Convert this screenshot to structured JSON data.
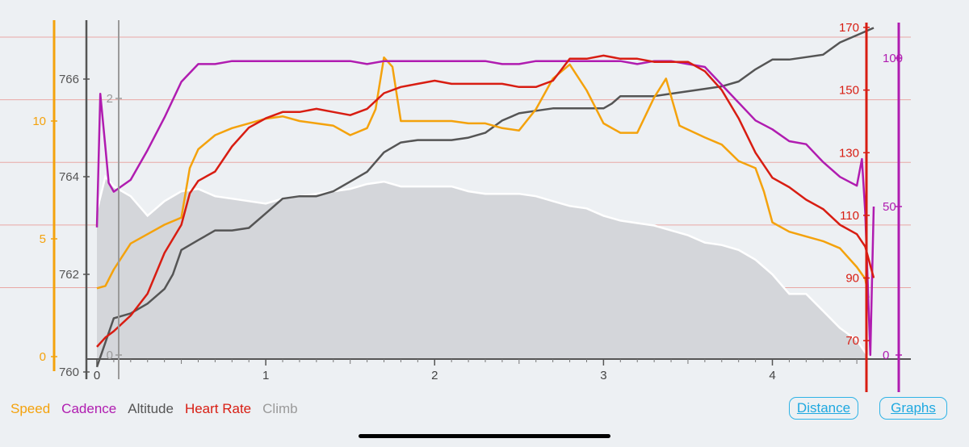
{
  "legend": [
    {
      "label": "Speed",
      "color": "#f4a20c"
    },
    {
      "label": "Cadence",
      "color": "#b01cb0"
    },
    {
      "label": "Altitude",
      "color": "#555555"
    },
    {
      "label": "Heart Rate",
      "color": "#d81d12"
    },
    {
      "label": "Climb",
      "color": "#9a9a9a"
    }
  ],
  "buttons": {
    "distance": "Distance",
    "graphs": "Graphs"
  },
  "chart_data": {
    "type": "line",
    "xlabel": "",
    "x_ticks": [
      "0",
      "1",
      "2",
      "3",
      "4"
    ],
    "xlim": [
      0,
      4.6
    ],
    "grid": "horizontal (heart rate axis)",
    "axes": {
      "speed": {
        "ticks": [
          "0",
          "5",
          "10"
        ],
        "ylim": [
          0,
          10.3
        ],
        "color": "#f4a20c"
      },
      "altitude": {
        "ticks": [
          "760",
          "762",
          "764",
          "766"
        ],
        "ylim": [
          760,
          766.95
        ],
        "color": "#555555"
      },
      "climb": {
        "ticks": [
          "0",
          "2"
        ],
        "ylim": [
          0,
          2.6
        ],
        "color": "#9a9a9a"
      },
      "heart_rate": {
        "ticks": [
          "70",
          "90",
          "110",
          "130",
          "150",
          "170"
        ],
        "ylim": [
          60,
          170
        ],
        "color": "#d81d12"
      },
      "cadence": {
        "ticks": [
          "0",
          "50",
          "100"
        ],
        "ylim": [
          0,
          110
        ],
        "color": "#b01cb0"
      }
    },
    "series": [
      {
        "name": "Speed",
        "axis": "speed",
        "color": "#f4a20c",
        "points": [
          [
            0.0,
            2.9
          ],
          [
            0.05,
            3.0
          ],
          [
            0.1,
            3.7
          ],
          [
            0.2,
            4.8
          ],
          [
            0.3,
            5.2
          ],
          [
            0.4,
            5.6
          ],
          [
            0.5,
            5.9
          ],
          [
            0.55,
            8.0
          ],
          [
            0.6,
            8.8
          ],
          [
            0.7,
            9.4
          ],
          [
            0.8,
            9.7
          ],
          [
            0.9,
            9.9
          ],
          [
            1.0,
            10.1
          ],
          [
            1.1,
            10.2
          ],
          [
            1.2,
            10.0
          ],
          [
            1.3,
            9.9
          ],
          [
            1.4,
            9.8
          ],
          [
            1.5,
            9.4
          ],
          [
            1.6,
            9.7
          ],
          [
            1.65,
            10.5
          ],
          [
            1.7,
            12.7
          ],
          [
            1.75,
            12.3
          ],
          [
            1.8,
            10.0
          ],
          [
            1.9,
            10.0
          ],
          [
            2.0,
            10.0
          ],
          [
            2.1,
            10.0
          ],
          [
            2.2,
            9.9
          ],
          [
            2.3,
            9.9
          ],
          [
            2.4,
            9.7
          ],
          [
            2.5,
            9.6
          ],
          [
            2.6,
            10.5
          ],
          [
            2.7,
            11.8
          ],
          [
            2.8,
            12.4
          ],
          [
            2.9,
            11.3
          ],
          [
            3.0,
            9.9
          ],
          [
            3.1,
            9.5
          ],
          [
            3.2,
            9.5
          ],
          [
            3.3,
            11.0
          ],
          [
            3.37,
            11.8
          ],
          [
            3.45,
            9.8
          ],
          [
            3.6,
            9.3
          ],
          [
            3.7,
            9.0
          ],
          [
            3.8,
            8.3
          ],
          [
            3.9,
            8.0
          ],
          [
            3.95,
            7.0
          ],
          [
            4.0,
            5.7
          ],
          [
            4.1,
            5.3
          ],
          [
            4.2,
            5.1
          ],
          [
            4.3,
            4.9
          ],
          [
            4.4,
            4.6
          ],
          [
            4.5,
            3.8
          ],
          [
            4.55,
            3.3
          ],
          [
            4.57,
            2.5
          ]
        ]
      },
      {
        "name": "Cadence",
        "axis": "cadence",
        "color": "#b01cb0",
        "points": [
          [
            0.0,
            43
          ],
          [
            0.02,
            88
          ],
          [
            0.05,
            70
          ],
          [
            0.07,
            58
          ],
          [
            0.1,
            55
          ],
          [
            0.2,
            59
          ],
          [
            0.3,
            69
          ],
          [
            0.4,
            80
          ],
          [
            0.5,
            92
          ],
          [
            0.6,
            98
          ],
          [
            0.7,
            98
          ],
          [
            0.8,
            99
          ],
          [
            0.9,
            99
          ],
          [
            1.0,
            99
          ],
          [
            1.1,
            99
          ],
          [
            1.2,
            99
          ],
          [
            1.3,
            99
          ],
          [
            1.4,
            99
          ],
          [
            1.5,
            99
          ],
          [
            1.6,
            98
          ],
          [
            1.7,
            99
          ],
          [
            1.8,
            99
          ],
          [
            1.9,
            99
          ],
          [
            2.0,
            99
          ],
          [
            2.1,
            99
          ],
          [
            2.2,
            99
          ],
          [
            2.3,
            99
          ],
          [
            2.4,
            98
          ],
          [
            2.5,
            98
          ],
          [
            2.6,
            99
          ],
          [
            2.7,
            99
          ],
          [
            2.8,
            99
          ],
          [
            2.9,
            99
          ],
          [
            3.0,
            99
          ],
          [
            3.1,
            99
          ],
          [
            3.2,
            98
          ],
          [
            3.3,
            99
          ],
          [
            3.4,
            99
          ],
          [
            3.5,
            98
          ],
          [
            3.6,
            97
          ],
          [
            3.7,
            91
          ],
          [
            3.8,
            85
          ],
          [
            3.9,
            79
          ],
          [
            4.0,
            76
          ],
          [
            4.1,
            72
          ],
          [
            4.2,
            71
          ],
          [
            4.3,
            65
          ],
          [
            4.4,
            60
          ],
          [
            4.5,
            57
          ],
          [
            4.53,
            66
          ],
          [
            4.55,
            48
          ],
          [
            4.58,
            0
          ],
          [
            4.6,
            50
          ]
        ]
      },
      {
        "name": "Altitude",
        "axis": "altitude",
        "color": "#555555",
        "points": [
          [
            0.0,
            760.1
          ],
          [
            0.1,
            761.1
          ],
          [
            0.2,
            761.2
          ],
          [
            0.3,
            761.4
          ],
          [
            0.4,
            761.7
          ],
          [
            0.45,
            762.0
          ],
          [
            0.5,
            762.5
          ],
          [
            0.6,
            762.7
          ],
          [
            0.7,
            762.9
          ],
          [
            0.8,
            762.9
          ],
          [
            0.9,
            762.95
          ],
          [
            1.0,
            763.25
          ],
          [
            1.1,
            763.55
          ],
          [
            1.2,
            763.6
          ],
          [
            1.3,
            763.6
          ],
          [
            1.4,
            763.7
          ],
          [
            1.5,
            763.9
          ],
          [
            1.6,
            764.1
          ],
          [
            1.7,
            764.5
          ],
          [
            1.8,
            764.7
          ],
          [
            1.9,
            764.75
          ],
          [
            2.0,
            764.75
          ],
          [
            2.1,
            764.75
          ],
          [
            2.2,
            764.8
          ],
          [
            2.3,
            764.9
          ],
          [
            2.4,
            765.15
          ],
          [
            2.5,
            765.3
          ],
          [
            2.6,
            765.35
          ],
          [
            2.7,
            765.4
          ],
          [
            2.8,
            765.4
          ],
          [
            2.9,
            765.4
          ],
          [
            3.0,
            765.4
          ],
          [
            3.05,
            765.5
          ],
          [
            3.1,
            765.65
          ],
          [
            3.2,
            765.65
          ],
          [
            3.3,
            765.65
          ],
          [
            3.4,
            765.7
          ],
          [
            3.5,
            765.75
          ],
          [
            3.6,
            765.8
          ],
          [
            3.7,
            765.85
          ],
          [
            3.8,
            765.95
          ],
          [
            3.9,
            766.2
          ],
          [
            4.0,
            766.4
          ],
          [
            4.1,
            766.4
          ],
          [
            4.2,
            766.45
          ],
          [
            4.3,
            766.5
          ],
          [
            4.4,
            766.75
          ],
          [
            4.5,
            766.9
          ],
          [
            4.6,
            767.05
          ]
        ]
      },
      {
        "name": "Heart Rate",
        "axis": "heart_rate",
        "color": "#d81d12",
        "points": [
          [
            0.0,
            68
          ],
          [
            0.05,
            71
          ],
          [
            0.1,
            73
          ],
          [
            0.2,
            78
          ],
          [
            0.3,
            85
          ],
          [
            0.4,
            98
          ],
          [
            0.5,
            107
          ],
          [
            0.55,
            117
          ],
          [
            0.6,
            121
          ],
          [
            0.7,
            124
          ],
          [
            0.8,
            132
          ],
          [
            0.9,
            138
          ],
          [
            1.0,
            141
          ],
          [
            1.1,
            143
          ],
          [
            1.2,
            143
          ],
          [
            1.3,
            144
          ],
          [
            1.4,
            143
          ],
          [
            1.5,
            142
          ],
          [
            1.6,
            144
          ],
          [
            1.7,
            149
          ],
          [
            1.8,
            151
          ],
          [
            1.9,
            152
          ],
          [
            2.0,
            153
          ],
          [
            2.1,
            152
          ],
          [
            2.2,
            152
          ],
          [
            2.3,
            152
          ],
          [
            2.4,
            152
          ],
          [
            2.5,
            151
          ],
          [
            2.6,
            151
          ],
          [
            2.7,
            153
          ],
          [
            2.8,
            160
          ],
          [
            2.9,
            160
          ],
          [
            3.0,
            161
          ],
          [
            3.1,
            160
          ],
          [
            3.2,
            160
          ],
          [
            3.3,
            159
          ],
          [
            3.4,
            159
          ],
          [
            3.5,
            159
          ],
          [
            3.6,
            156
          ],
          [
            3.7,
            150
          ],
          [
            3.8,
            141
          ],
          [
            3.9,
            130
          ],
          [
            4.0,
            122
          ],
          [
            4.1,
            119
          ],
          [
            4.2,
            115
          ],
          [
            4.3,
            112
          ],
          [
            4.4,
            107
          ],
          [
            4.5,
            104
          ],
          [
            4.55,
            100
          ],
          [
            4.6,
            90
          ]
        ]
      },
      {
        "name": "Climb",
        "axis": "altitude",
        "color": "#ffffff",
        "fill": "#d4d6da",
        "points": [
          [
            0.0,
            763.3
          ],
          [
            0.05,
            764.0
          ],
          [
            0.1,
            763.8
          ],
          [
            0.2,
            763.6
          ],
          [
            0.3,
            763.2
          ],
          [
            0.4,
            763.5
          ],
          [
            0.5,
            763.7
          ],
          [
            0.6,
            763.75
          ],
          [
            0.7,
            763.6
          ],
          [
            0.8,
            763.55
          ],
          [
            0.9,
            763.5
          ],
          [
            1.0,
            763.45
          ],
          [
            1.1,
            763.55
          ],
          [
            1.2,
            763.6
          ],
          [
            1.3,
            763.65
          ],
          [
            1.4,
            763.7
          ],
          [
            1.5,
            763.75
          ],
          [
            1.6,
            763.85
          ],
          [
            1.7,
            763.9
          ],
          [
            1.8,
            763.8
          ],
          [
            1.9,
            763.8
          ],
          [
            2.0,
            763.8
          ],
          [
            2.1,
            763.8
          ],
          [
            2.2,
            763.7
          ],
          [
            2.3,
            763.65
          ],
          [
            2.4,
            763.65
          ],
          [
            2.5,
            763.65
          ],
          [
            2.6,
            763.6
          ],
          [
            2.7,
            763.5
          ],
          [
            2.8,
            763.4
          ],
          [
            2.9,
            763.35
          ],
          [
            3.0,
            763.2
          ],
          [
            3.1,
            763.1
          ],
          [
            3.2,
            763.05
          ],
          [
            3.3,
            763.0
          ],
          [
            3.4,
            762.9
          ],
          [
            3.5,
            762.8
          ],
          [
            3.6,
            762.65
          ],
          [
            3.7,
            762.6
          ],
          [
            3.8,
            762.5
          ],
          [
            3.9,
            762.3
          ],
          [
            4.0,
            762.0
          ],
          [
            4.1,
            761.6
          ],
          [
            4.2,
            761.6
          ],
          [
            4.3,
            761.25
          ],
          [
            4.4,
            760.9
          ],
          [
            4.5,
            760.65
          ],
          [
            4.57,
            760.3
          ]
        ]
      }
    ]
  }
}
